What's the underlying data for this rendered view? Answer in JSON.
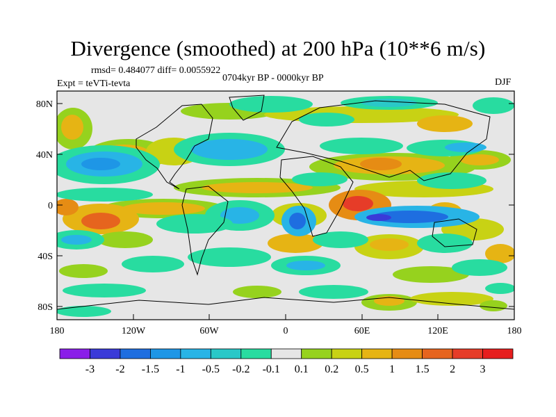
{
  "title": "Divergence (smoothed) at 200 hPa (10**6 m/s)",
  "stats": "rmsd= 0.484077 diff= 0.0055922",
  "period": "0704kyr BP - 0000kyr BP",
  "expt": "Expt = teVTi-tevta",
  "season": "DJF",
  "axes": {
    "lon_ticks": [
      "180",
      "120W",
      "60W",
      "0",
      "60E",
      "120E",
      "180"
    ],
    "lat_ticks": [
      "80N",
      "40N",
      "0",
      "40S",
      "80S"
    ]
  },
  "colorbar": {
    "labels": [
      "-3",
      "-2",
      "-1.5",
      "-1",
      "-0.5",
      "-0.2",
      "-0.1",
      "0.1",
      "0.2",
      "0.5",
      "1",
      "1.5",
      "2",
      "3"
    ],
    "colors": [
      "#8a1ee8",
      "#3a3ad8",
      "#1e6ee0",
      "#1e96e6",
      "#28b4e6",
      "#2ac8c8",
      "#28dca0",
      "#e6e6e6",
      "#96d21e",
      "#c8d214",
      "#e6b414",
      "#e68c14",
      "#e6641e",
      "#e63c28",
      "#e61e1e"
    ]
  }
}
